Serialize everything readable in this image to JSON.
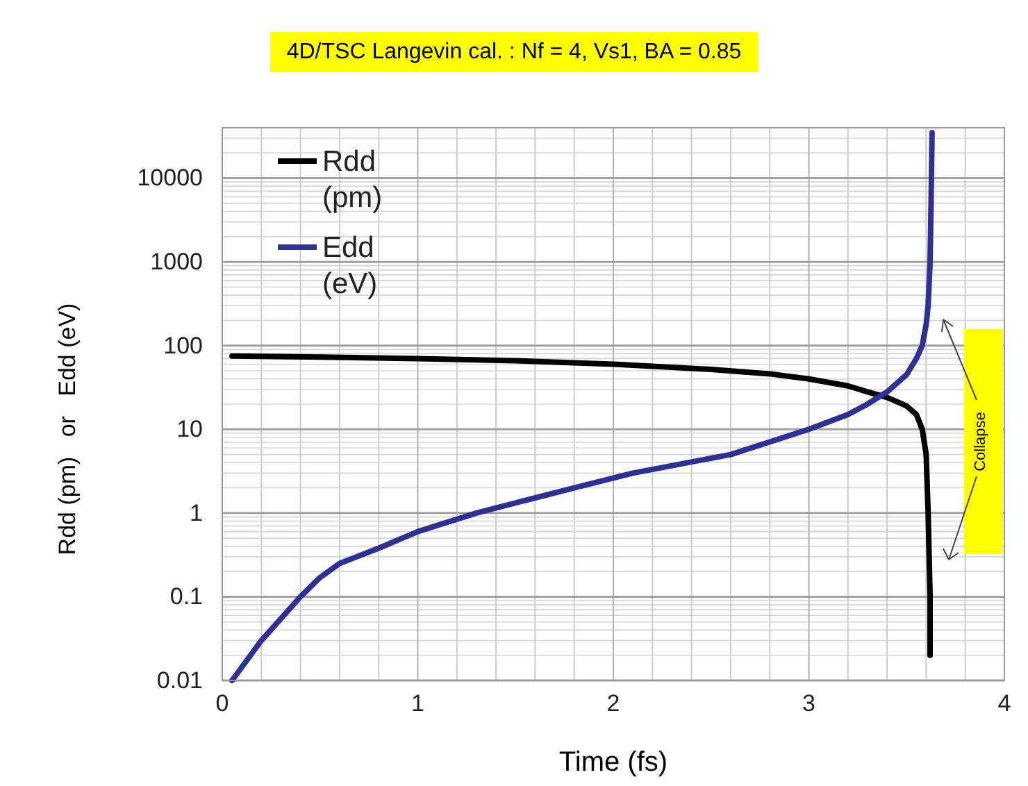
{
  "chart_data": {
    "type": "line",
    "title": "4D/TSC   Langevin  cal. : Nf = 4, Vs1, BA = 0.85",
    "xlabel": "Time (fs)",
    "ylabel": "Rdd (pm)   or   Edd (eV)",
    "xlim": [
      0,
      4
    ],
    "xticks": [
      0,
      1,
      2,
      3,
      4
    ],
    "ylim": [
      0.01,
      40000
    ],
    "yticks": [
      0.01,
      0.1,
      1,
      10,
      100,
      1000,
      10000
    ],
    "log": "y",
    "grid": true,
    "legend": "top left",
    "line_style": "solid",
    "marker": "none",
    "annotations": [
      "Collapse"
    ],
    "series": [
      {
        "name": "Rdd (pm)",
        "color": "#000000",
        "x": [
          0.05,
          0.5,
          1,
          1.5,
          2,
          2.5,
          2.8,
          3,
          3.2,
          3.3,
          3.4,
          3.5,
          3.55,
          3.58,
          3.6,
          3.61,
          3.62,
          3.62
        ],
        "values": [
          75,
          73,
          70,
          66,
          60,
          52,
          46,
          40,
          33,
          28,
          24,
          19,
          15,
          10,
          5,
          1,
          0.1,
          0.02
        ]
      },
      {
        "name": "Edd (eV)",
        "color": "#2e3192",
        "x": [
          0.05,
          0.2,
          0.4,
          0.5,
          0.6,
          0.8,
          1,
          1.3,
          1.8,
          2.1,
          2.6,
          3,
          3.2,
          3.3,
          3.4,
          3.5,
          3.55,
          3.58,
          3.6,
          3.61,
          3.62,
          3.625,
          3.63
        ],
        "values": [
          0.01,
          0.03,
          0.1,
          0.17,
          0.25,
          0.38,
          0.6,
          1,
          2,
          3,
          5,
          10,
          15,
          20,
          28,
          45,
          70,
          100,
          180,
          300,
          1000,
          5000,
          35000
        ]
      }
    ]
  }
}
